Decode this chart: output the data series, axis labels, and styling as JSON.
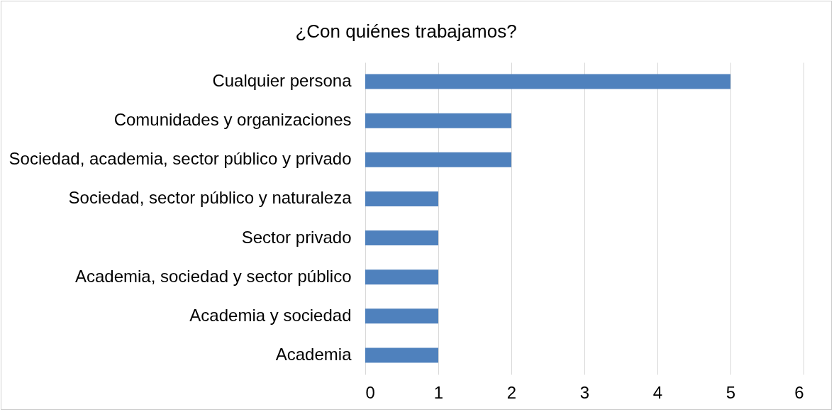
{
  "chart_data": {
    "type": "bar",
    "title": "¿Con quiénes trabajamos?",
    "orientation": "horizontal",
    "categories": [
      "Cualquier persona",
      "Comunidades y organizaciones",
      "Sociedad, academia, sector público y privado",
      "Sociedad, sector público y naturaleza",
      "Sector privado",
      "Academia, sociedad y sector público",
      "Academia y sociedad",
      "Academia"
    ],
    "values": [
      5,
      2,
      2,
      1,
      1,
      1,
      1,
      1
    ],
    "color": "#4f81bd",
    "xlim": [
      0,
      6
    ],
    "xticks": [
      0,
      1,
      2,
      3,
      4,
      5,
      6
    ],
    "grid": "x"
  }
}
